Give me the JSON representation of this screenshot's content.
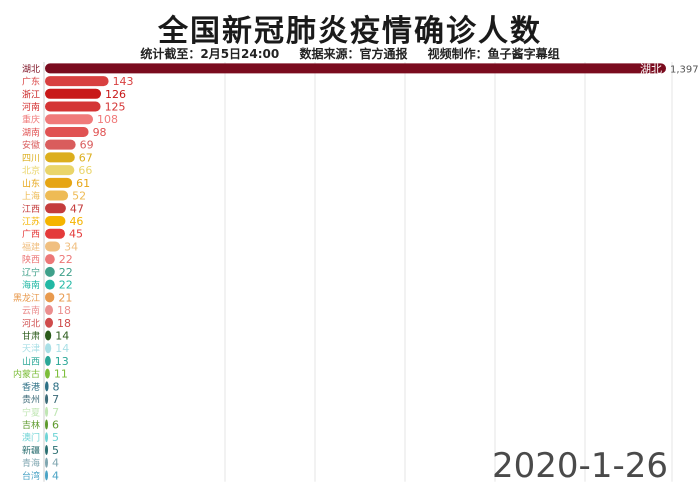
{
  "header": {
    "title": "全国新冠肺炎疫情确诊人数",
    "subtitle_time": "统计截至：2月5日24:00",
    "subtitle_source": "数据来源：官方通报",
    "subtitle_maker": "视频制作：鱼子酱字幕组"
  },
  "date_label": "2020-1-26",
  "chart_data": {
    "type": "bar",
    "orientation": "horizontal",
    "title": "全国新冠肺炎疫情确诊人数",
    "grid": true,
    "categories": [
      "湖北",
      "广东",
      "浙江",
      "河南",
      "重庆",
      "湖南",
      "安徽",
      "四川",
      "北京",
      "山东",
      "上海",
      "江西",
      "江苏",
      "广西",
      "福建",
      "陕西",
      "辽宁",
      "海南",
      "黑龙江",
      "云南",
      "河北",
      "甘肃",
      "天津",
      "山西",
      "内蒙古",
      "香港",
      "贵州",
      "宁夏",
      "吉林",
      "澳门",
      "新疆",
      "青海",
      "台湾"
    ],
    "values": [
      1397,
      143,
      126,
      125,
      108,
      98,
      69,
      67,
      66,
      61,
      52,
      47,
      46,
      45,
      34,
      22,
      22,
      22,
      21,
      18,
      18,
      14,
      14,
      13,
      11,
      8,
      7,
      7,
      6,
      5,
      5,
      4,
      4
    ],
    "colors": [
      "#7a0b1e",
      "#d84040",
      "#c81818",
      "#d43434",
      "#f07a7a",
      "#e05252",
      "#d95d5d",
      "#dcae1d",
      "#ead56a",
      "#e6a514",
      "#eebb55",
      "#c43c3c",
      "#f5b400",
      "#e43a3a",
      "#f0bf80",
      "#ec7777",
      "#3fa08a",
      "#22b8a4",
      "#e89a4e",
      "#eb8f8f",
      "#cf4c4c",
      "#2a5a1a",
      "#a9dfe6",
      "#2ba797",
      "#7cbd3a",
      "#2d7085",
      "#3c6a78",
      "#c0e6b4",
      "#5d9a2c",
      "#6fd4d6",
      "#2a6e70",
      "#7fa6b0",
      "#4aa3c5"
    ],
    "bar_value_label_inside": "湖北"
  }
}
